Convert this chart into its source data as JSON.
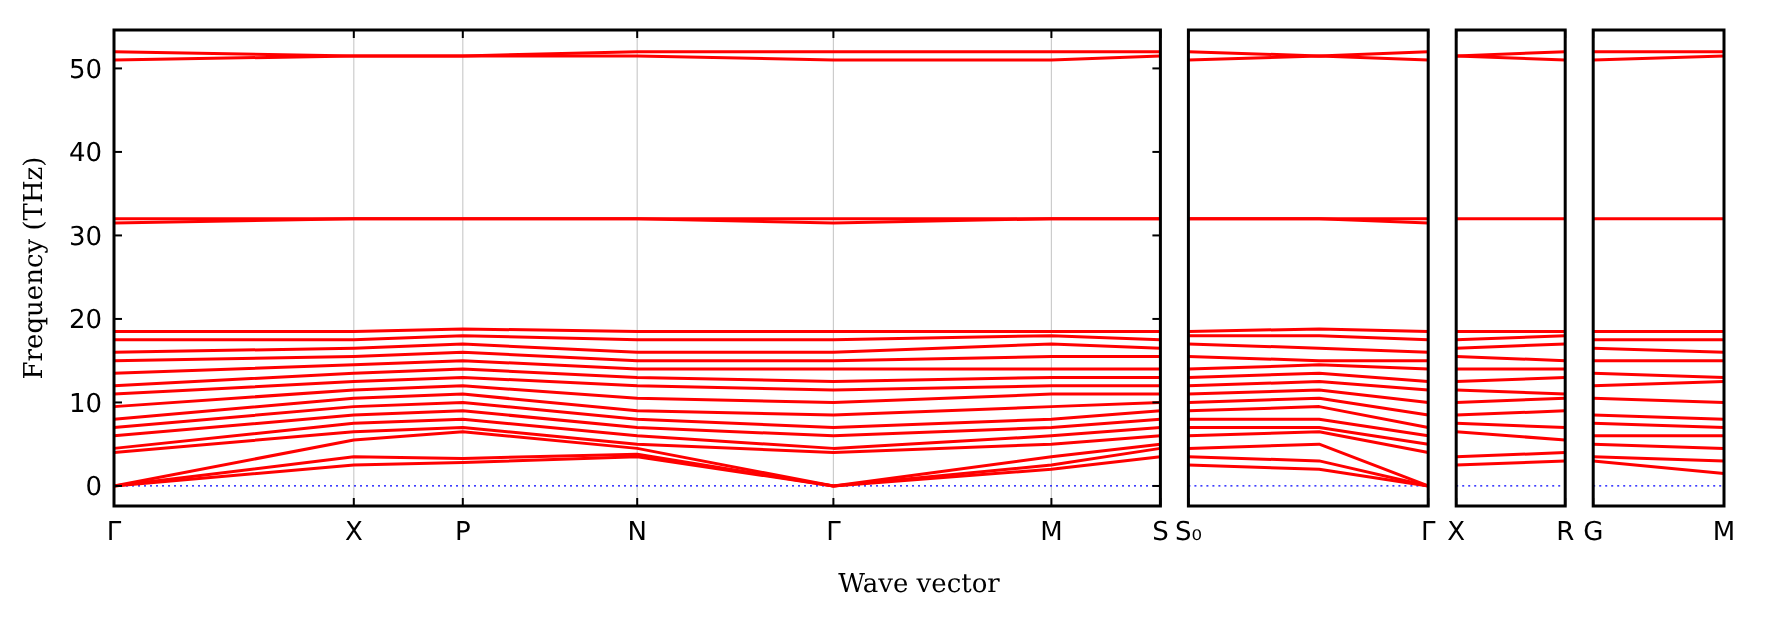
{
  "chart_data": [
    {
      "type": "line",
      "ylabel": "Frequency (THz)",
      "xlabel": "Wave vector",
      "categories": [
        "Γ",
        null,
        null,
        null,
        null,
        null,
        null,
        null,
        null,
        null,
        null,
        "X",
        null,
        null,
        null,
        null,
        "P",
        null,
        null,
        null,
        null,
        null,
        null,
        null,
        "N",
        null,
        null,
        null,
        null,
        null,
        null,
        null,
        null,
        "Γ",
        null,
        null,
        null,
        null,
        null,
        null,
        null,
        null,
        null,
        "M",
        null,
        null,
        null,
        null,
        "S"
      ],
      "ylim": [
        -2.4,
        54.6
      ],
      "yticks": [
        0,
        10,
        20,
        30,
        40,
        50
      ],
      "grid": "x",
      "ref_lines": [
        {
          "axis": "y",
          "value": 0,
          "color": "#0000ff",
          "line_style": "dotted"
        }
      ],
      "series": [
        {
          "color": "#ff0000",
          "values": [
            0,
            null,
            null,
            null,
            null,
            null,
            null,
            null,
            null,
            null,
            null,
            2.5,
            null,
            null,
            null,
            null,
            2.8,
            null,
            null,
            null,
            null,
            null,
            null,
            null,
            3.5,
            null,
            null,
            null,
            null,
            null,
            null,
            null,
            null,
            0,
            null,
            null,
            null,
            null,
            null,
            null,
            null,
            null,
            null,
            2,
            null,
            null,
            null,
            null,
            3.5
          ]
        },
        {
          "color": "#ff0000",
          "values": [
            0,
            null,
            null,
            null,
            null,
            null,
            null,
            null,
            null,
            null,
            null,
            3.5,
            null,
            null,
            null,
            null,
            3.3,
            null,
            null,
            null,
            null,
            null,
            null,
            null,
            3.8,
            null,
            null,
            null,
            null,
            null,
            null,
            null,
            null,
            0,
            null,
            null,
            null,
            null,
            null,
            null,
            null,
            null,
            null,
            2.5,
            null,
            null,
            null,
            null,
            4.5
          ]
        },
        {
          "color": "#ff0000",
          "values": [
            0,
            null,
            null,
            null,
            null,
            null,
            null,
            null,
            null,
            null,
            null,
            5.5,
            null,
            null,
            null,
            null,
            6.5,
            null,
            null,
            null,
            null,
            null,
            null,
            null,
            4.5,
            null,
            null,
            null,
            null,
            null,
            null,
            null,
            null,
            0,
            null,
            null,
            null,
            null,
            null,
            null,
            null,
            null,
            null,
            3.5,
            null,
            null,
            null,
            null,
            5
          ]
        },
        {
          "color": "#ff0000",
          "values": [
            4,
            null,
            null,
            null,
            null,
            null,
            null,
            null,
            null,
            null,
            null,
            6.5,
            null,
            null,
            null,
            null,
            7,
            null,
            null,
            null,
            null,
            null,
            null,
            null,
            5,
            null,
            null,
            null,
            null,
            null,
            null,
            null,
            null,
            4,
            null,
            null,
            null,
            null,
            null,
            null,
            null,
            null,
            null,
            5,
            null,
            null,
            null,
            null,
            6
          ]
        },
        {
          "color": "#ff0000",
          "values": [
            4.5,
            null,
            null,
            null,
            null,
            null,
            null,
            null,
            null,
            null,
            null,
            7.5,
            null,
            null,
            null,
            null,
            8,
            null,
            null,
            null,
            null,
            null,
            null,
            null,
            6,
            null,
            null,
            null,
            null,
            null,
            null,
            null,
            null,
            4.5,
            null,
            null,
            null,
            null,
            null,
            null,
            null,
            null,
            null,
            6,
            null,
            null,
            null,
            null,
            7
          ]
        },
        {
          "color": "#ff0000",
          "values": [
            6,
            null,
            null,
            null,
            null,
            null,
            null,
            null,
            null,
            null,
            null,
            8.5,
            null,
            null,
            null,
            null,
            9,
            null,
            null,
            null,
            null,
            null,
            null,
            null,
            7,
            null,
            null,
            null,
            null,
            null,
            null,
            null,
            null,
            6,
            null,
            null,
            null,
            null,
            null,
            null,
            null,
            null,
            null,
            7,
            null,
            null,
            null,
            null,
            8
          ]
        },
        {
          "color": "#ff0000",
          "values": [
            7,
            null,
            null,
            null,
            null,
            null,
            null,
            null,
            null,
            null,
            null,
            9.5,
            null,
            null,
            null,
            null,
            10,
            null,
            null,
            null,
            null,
            null,
            null,
            null,
            8,
            null,
            null,
            null,
            null,
            null,
            null,
            null,
            null,
            7,
            null,
            null,
            null,
            null,
            null,
            null,
            null,
            null,
            null,
            8,
            null,
            null,
            null,
            null,
            9
          ]
        },
        {
          "color": "#ff0000",
          "values": [
            8,
            null,
            null,
            null,
            null,
            null,
            null,
            null,
            null,
            null,
            null,
            10.5,
            null,
            null,
            null,
            null,
            11,
            null,
            null,
            null,
            null,
            null,
            null,
            null,
            9,
            null,
            null,
            null,
            null,
            null,
            null,
            null,
            null,
            8.5,
            null,
            null,
            null,
            null,
            null,
            null,
            null,
            null,
            null,
            9.5,
            null,
            null,
            null,
            null,
            10
          ]
        },
        {
          "color": "#ff0000",
          "values": [
            9.5,
            null,
            null,
            null,
            null,
            null,
            null,
            null,
            null,
            null,
            null,
            11.5,
            null,
            null,
            null,
            null,
            12,
            null,
            null,
            null,
            null,
            null,
            null,
            null,
            10.5,
            null,
            null,
            null,
            null,
            null,
            null,
            null,
            null,
            10,
            null,
            null,
            null,
            null,
            null,
            null,
            null,
            null,
            null,
            11,
            null,
            null,
            null,
            null,
            11
          ]
        },
        {
          "color": "#ff0000",
          "values": [
            11,
            null,
            null,
            null,
            null,
            null,
            null,
            null,
            null,
            null,
            null,
            12.5,
            null,
            null,
            null,
            null,
            13,
            null,
            null,
            null,
            null,
            null,
            null,
            null,
            12,
            null,
            null,
            null,
            null,
            null,
            null,
            null,
            null,
            11.5,
            null,
            null,
            null,
            null,
            null,
            null,
            null,
            null,
            null,
            12,
            null,
            null,
            null,
            null,
            12
          ]
        },
        {
          "color": "#ff0000",
          "values": [
            12,
            null,
            null,
            null,
            null,
            null,
            null,
            null,
            null,
            null,
            null,
            13.5,
            null,
            null,
            null,
            null,
            14,
            null,
            null,
            null,
            null,
            null,
            null,
            null,
            13,
            null,
            null,
            null,
            null,
            null,
            null,
            null,
            null,
            12.5,
            null,
            null,
            null,
            null,
            null,
            null,
            null,
            null,
            null,
            13,
            null,
            null,
            null,
            null,
            13
          ]
        },
        {
          "color": "#ff0000",
          "values": [
            13.5,
            null,
            null,
            null,
            null,
            null,
            null,
            null,
            null,
            null,
            null,
            14.5,
            null,
            null,
            null,
            null,
            15,
            null,
            null,
            null,
            null,
            null,
            null,
            null,
            14,
            null,
            null,
            null,
            null,
            null,
            null,
            null,
            null,
            14,
            null,
            null,
            null,
            null,
            null,
            null,
            null,
            null,
            null,
            14,
            null,
            null,
            null,
            null,
            14
          ]
        },
        {
          "color": "#ff0000",
          "values": [
            15,
            null,
            null,
            null,
            null,
            null,
            null,
            null,
            null,
            null,
            null,
            15.5,
            null,
            null,
            null,
            null,
            16,
            null,
            null,
            null,
            null,
            null,
            null,
            null,
            15,
            null,
            null,
            null,
            null,
            null,
            null,
            null,
            null,
            15,
            null,
            null,
            null,
            null,
            null,
            null,
            null,
            null,
            null,
            15.5,
            null,
            null,
            null,
            null,
            15.5
          ]
        },
        {
          "color": "#ff0000",
          "values": [
            16,
            null,
            null,
            null,
            null,
            null,
            null,
            null,
            null,
            null,
            null,
            16.5,
            null,
            null,
            null,
            null,
            17,
            null,
            null,
            null,
            null,
            null,
            null,
            null,
            16,
            null,
            null,
            null,
            null,
            null,
            null,
            null,
            null,
            16,
            null,
            null,
            null,
            null,
            null,
            null,
            null,
            null,
            null,
            17,
            null,
            null,
            null,
            null,
            16.5
          ]
        },
        {
          "color": "#ff0000",
          "values": [
            17.5,
            null,
            null,
            null,
            null,
            null,
            null,
            null,
            null,
            null,
            null,
            17.5,
            null,
            null,
            null,
            null,
            18,
            null,
            null,
            null,
            null,
            null,
            null,
            null,
            17.5,
            null,
            null,
            null,
            null,
            null,
            null,
            null,
            null,
            17.5,
            null,
            null,
            null,
            null,
            null,
            null,
            null,
            null,
            null,
            18,
            null,
            null,
            null,
            null,
            17.5
          ]
        },
        {
          "color": "#ff0000",
          "values": [
            18.5,
            null,
            null,
            null,
            null,
            null,
            null,
            null,
            null,
            null,
            null,
            18.5,
            null,
            null,
            null,
            null,
            18.8,
            null,
            null,
            null,
            null,
            null,
            null,
            null,
            18.5,
            null,
            null,
            null,
            null,
            null,
            null,
            null,
            null,
            18.5,
            null,
            null,
            null,
            null,
            null,
            null,
            null,
            null,
            null,
            18.5,
            null,
            null,
            null,
            null,
            18.5
          ]
        },
        {
          "color": "#ff0000",
          "values": [
            31.5,
            null,
            null,
            null,
            null,
            null,
            null,
            null,
            null,
            null,
            null,
            32,
            null,
            null,
            null,
            null,
            32,
            null,
            null,
            null,
            null,
            null,
            null,
            null,
            32,
            null,
            null,
            null,
            null,
            null,
            null,
            null,
            null,
            31.5,
            null,
            null,
            null,
            null,
            null,
            null,
            null,
            null,
            null,
            32,
            null,
            null,
            null,
            null,
            32
          ]
        },
        {
          "color": "#ff0000",
          "values": [
            32,
            null,
            null,
            null,
            null,
            null,
            null,
            null,
            null,
            null,
            null,
            32,
            null,
            null,
            null,
            null,
            32,
            null,
            null,
            null,
            null,
            null,
            null,
            null,
            32,
            null,
            null,
            null,
            null,
            null,
            null,
            null,
            null,
            32,
            null,
            null,
            null,
            null,
            null,
            null,
            null,
            null,
            null,
            32,
            null,
            null,
            null,
            null,
            32
          ]
        },
        {
          "color": "#ff0000",
          "values": [
            51,
            null,
            null,
            null,
            null,
            null,
            null,
            null,
            null,
            null,
            null,
            51.5,
            null,
            null,
            null,
            null,
            51.5,
            null,
            null,
            null,
            null,
            null,
            null,
            null,
            51.5,
            null,
            null,
            null,
            null,
            null,
            null,
            null,
            null,
            51,
            null,
            null,
            null,
            null,
            null,
            null,
            null,
            null,
            null,
            51,
            null,
            null,
            null,
            null,
            51.5
          ]
        },
        {
          "color": "#ff0000",
          "values": [
            52,
            null,
            null,
            null,
            null,
            null,
            null,
            null,
            null,
            null,
            null,
            51.5,
            null,
            null,
            null,
            null,
            51.5,
            null,
            null,
            null,
            null,
            null,
            null,
            null,
            52,
            null,
            null,
            null,
            null,
            null,
            null,
            null,
            null,
            52,
            null,
            null,
            null,
            null,
            null,
            null,
            null,
            null,
            null,
            52,
            null,
            null,
            null,
            null,
            52
          ]
        }
      ]
    },
    {
      "type": "line",
      "categories": [
        "S₀",
        null,
        null,
        null,
        null,
        null,
        null,
        null,
        null,
        null,
        null,
        "Γ"
      ],
      "ylim": [
        -2.4,
        54.6
      ],
      "tick_labels": "x",
      "ref_lines": [
        {
          "axis": "y",
          "value": 0,
          "color": "#0000ff",
          "line_style": "dotted"
        }
      ],
      "series": [
        {
          "color": "#ff0000",
          "values": [
            2.5,
            null,
            null,
            null,
            null,
            null,
            2,
            null,
            null,
            null,
            null,
            0
          ]
        },
        {
          "color": "#ff0000",
          "values": [
            3.5,
            null,
            null,
            null,
            null,
            null,
            3,
            null,
            null,
            null,
            null,
            0
          ]
        },
        {
          "color": "#ff0000",
          "values": [
            4.5,
            null,
            null,
            null,
            null,
            null,
            5,
            null,
            null,
            null,
            null,
            0
          ]
        },
        {
          "color": "#ff0000",
          "values": [
            6,
            null,
            null,
            null,
            null,
            null,
            6.5,
            null,
            null,
            null,
            null,
            4
          ]
        },
        {
          "color": "#ff0000",
          "values": [
            7,
            null,
            null,
            null,
            null,
            null,
            7,
            null,
            null,
            null,
            null,
            5
          ]
        },
        {
          "color": "#ff0000",
          "values": [
            8,
            null,
            null,
            null,
            null,
            null,
            8,
            null,
            null,
            null,
            null,
            6
          ]
        },
        {
          "color": "#ff0000",
          "values": [
            9,
            null,
            null,
            null,
            null,
            null,
            9.5,
            null,
            null,
            null,
            null,
            7
          ]
        },
        {
          "color": "#ff0000",
          "values": [
            10,
            null,
            null,
            null,
            null,
            null,
            10.5,
            null,
            null,
            null,
            null,
            8.5
          ]
        },
        {
          "color": "#ff0000",
          "values": [
            11,
            null,
            null,
            null,
            null,
            null,
            11.5,
            null,
            null,
            null,
            null,
            10
          ]
        },
        {
          "color": "#ff0000",
          "values": [
            12,
            null,
            null,
            null,
            null,
            null,
            12.5,
            null,
            null,
            null,
            null,
            11.5
          ]
        },
        {
          "color": "#ff0000",
          "values": [
            13,
            null,
            null,
            null,
            null,
            null,
            13.5,
            null,
            null,
            null,
            null,
            12.5
          ]
        },
        {
          "color": "#ff0000",
          "values": [
            14,
            null,
            null,
            null,
            null,
            null,
            14.5,
            null,
            null,
            null,
            null,
            14
          ]
        },
        {
          "color": "#ff0000",
          "values": [
            15.5,
            null,
            null,
            null,
            null,
            null,
            15,
            null,
            null,
            null,
            null,
            15
          ]
        },
        {
          "color": "#ff0000",
          "values": [
            17,
            null,
            null,
            null,
            null,
            null,
            16.5,
            null,
            null,
            null,
            null,
            16
          ]
        },
        {
          "color": "#ff0000",
          "values": [
            18,
            null,
            null,
            null,
            null,
            null,
            18,
            null,
            null,
            null,
            null,
            17.5
          ]
        },
        {
          "color": "#ff0000",
          "values": [
            18.5,
            null,
            null,
            null,
            null,
            null,
            18.8,
            null,
            null,
            null,
            null,
            18.5
          ]
        },
        {
          "color": "#ff0000",
          "values": [
            32,
            null,
            null,
            null,
            null,
            null,
            32,
            null,
            null,
            null,
            null,
            31.5
          ]
        },
        {
          "color": "#ff0000",
          "values": [
            32,
            null,
            null,
            null,
            null,
            null,
            32,
            null,
            null,
            null,
            null,
            32
          ]
        },
        {
          "color": "#ff0000",
          "values": [
            51,
            null,
            null,
            null,
            null,
            null,
            51.5,
            null,
            null,
            null,
            null,
            51
          ]
        },
        {
          "color": "#ff0000",
          "values": [
            52,
            null,
            null,
            null,
            null,
            null,
            51.5,
            null,
            null,
            null,
            null,
            52
          ]
        }
      ]
    },
    {
      "type": "line",
      "categories": [
        "X",
        null,
        null,
        null,
        null,
        "R"
      ],
      "ylim": [
        -2.4,
        54.6
      ],
      "tick_labels": "x",
      "ref_lines": [
        {
          "axis": "y",
          "value": 0,
          "color": "#0000ff",
          "line_style": "dotted"
        }
      ],
      "series": [
        {
          "color": "#ff0000",
          "values": [
            2.5,
            null,
            null,
            null,
            null,
            3
          ]
        },
        {
          "color": "#ff0000",
          "values": [
            3.5,
            null,
            null,
            null,
            null,
            4
          ]
        },
        {
          "color": "#ff0000",
          "values": [
            6.5,
            null,
            null,
            null,
            null,
            5.5
          ]
        },
        {
          "color": "#ff0000",
          "values": [
            7.5,
            null,
            null,
            null,
            null,
            7
          ]
        },
        {
          "color": "#ff0000",
          "values": [
            8.5,
            null,
            null,
            null,
            null,
            9
          ]
        },
        {
          "color": "#ff0000",
          "values": [
            10,
            null,
            null,
            null,
            null,
            10.5
          ]
        },
        {
          "color": "#ff0000",
          "values": [
            11.5,
            null,
            null,
            null,
            null,
            11
          ]
        },
        {
          "color": "#ff0000",
          "values": [
            12.5,
            null,
            null,
            null,
            null,
            13
          ]
        },
        {
          "color": "#ff0000",
          "values": [
            14,
            null,
            null,
            null,
            null,
            14
          ]
        },
        {
          "color": "#ff0000",
          "values": [
            15.5,
            null,
            null,
            null,
            null,
            15
          ]
        },
        {
          "color": "#ff0000",
          "values": [
            16.5,
            null,
            null,
            null,
            null,
            17
          ]
        },
        {
          "color": "#ff0000",
          "values": [
            17.5,
            null,
            null,
            null,
            null,
            18
          ]
        },
        {
          "color": "#ff0000",
          "values": [
            18.5,
            null,
            null,
            null,
            null,
            18.5
          ]
        },
        {
          "color": "#ff0000",
          "values": [
            32,
            null,
            null,
            null,
            null,
            32
          ]
        },
        {
          "color": "#ff0000",
          "values": [
            51.5,
            null,
            null,
            null,
            null,
            51
          ]
        },
        {
          "color": "#ff0000",
          "values": [
            51.5,
            null,
            null,
            null,
            null,
            52
          ]
        }
      ]
    },
    {
      "type": "line",
      "categories": [
        "G",
        null,
        null,
        null,
        null,
        null,
        "M"
      ],
      "ylim": [
        -2.4,
        54.6
      ],
      "tick_labels": "x",
      "ref_lines": [
        {
          "axis": "y",
          "value": 0,
          "color": "#0000ff",
          "line_style": "dotted"
        }
      ],
      "series": [
        {
          "color": "#ff0000",
          "values": [
            3,
            null,
            null,
            null,
            null,
            null,
            1.5
          ]
        },
        {
          "color": "#ff0000",
          "values": [
            3.5,
            null,
            null,
            null,
            null,
            null,
            3
          ]
        },
        {
          "color": "#ff0000",
          "values": [
            5,
            null,
            null,
            null,
            null,
            null,
            4.5
          ]
        },
        {
          "color": "#ff0000",
          "values": [
            6,
            null,
            null,
            null,
            null,
            null,
            6
          ]
        },
        {
          "color": "#ff0000",
          "values": [
            7.5,
            null,
            null,
            null,
            null,
            null,
            7
          ]
        },
        {
          "color": "#ff0000",
          "values": [
            8.5,
            null,
            null,
            null,
            null,
            null,
            8
          ]
        },
        {
          "color": "#ff0000",
          "values": [
            10.5,
            null,
            null,
            null,
            null,
            null,
            10
          ]
        },
        {
          "color": "#ff0000",
          "values": [
            12,
            null,
            null,
            null,
            null,
            null,
            12.5
          ]
        },
        {
          "color": "#ff0000",
          "values": [
            13.5,
            null,
            null,
            null,
            null,
            null,
            13
          ]
        },
        {
          "color": "#ff0000",
          "values": [
            15,
            null,
            null,
            null,
            null,
            null,
            15
          ]
        },
        {
          "color": "#ff0000",
          "values": [
            16.5,
            null,
            null,
            null,
            null,
            null,
            16
          ]
        },
        {
          "color": "#ff0000",
          "values": [
            17.5,
            null,
            null,
            null,
            null,
            null,
            17.5
          ]
        },
        {
          "color": "#ff0000",
          "values": [
            18.5,
            null,
            null,
            null,
            null,
            null,
            18.5
          ]
        },
        {
          "color": "#ff0000",
          "values": [
            32,
            null,
            null,
            null,
            null,
            null,
            32
          ]
        },
        {
          "color": "#ff0000",
          "values": [
            51,
            null,
            null,
            null,
            null,
            null,
            51.5
          ]
        },
        {
          "color": "#ff0000",
          "values": [
            52,
            null,
            null,
            null,
            null,
            null,
            52
          ]
        }
      ]
    }
  ]
}
